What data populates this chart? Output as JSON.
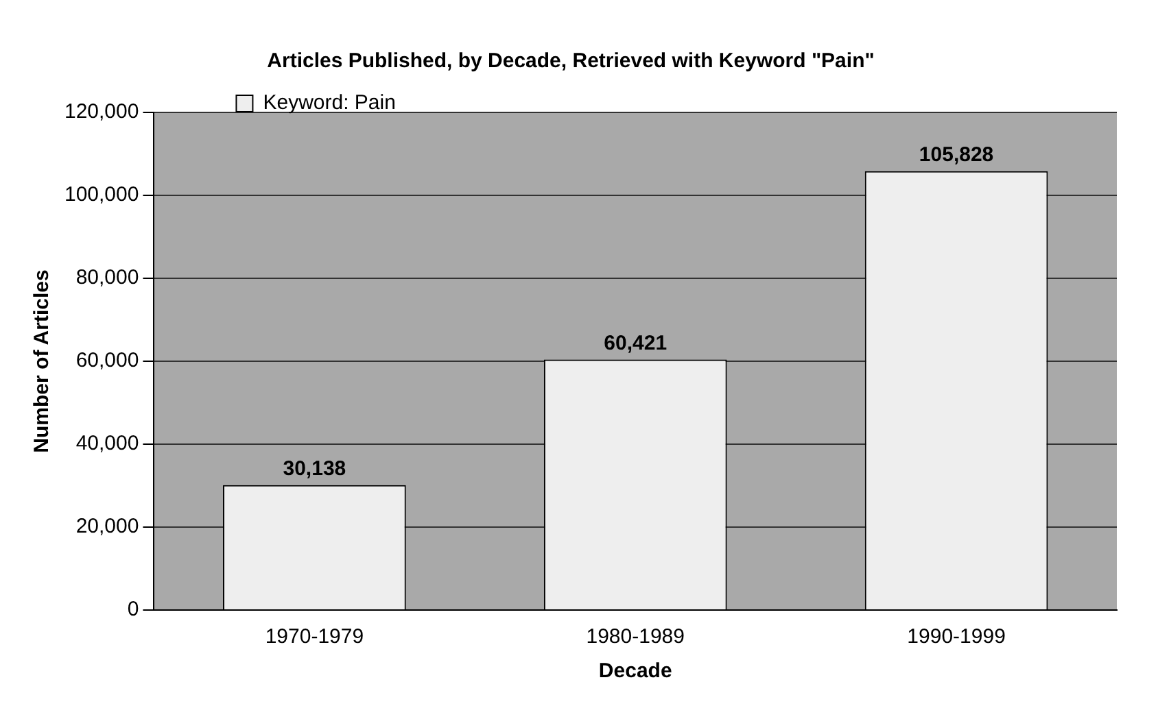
{
  "chart_data": {
    "type": "bar",
    "title": "Articles Published, by Decade, Retrieved with Keyword \"Pain\"",
    "xlabel": "Decade",
    "ylabel": "Number of Articles",
    "categories": [
      "1970-1979",
      "1980-1989",
      "1990-1999"
    ],
    "series": [
      {
        "name": "Keyword: Pain",
        "color": "#eeeeee",
        "values": [
          30138,
          60421,
          105828
        ],
        "value_labels": [
          "30,138",
          "60,421",
          "105,828"
        ]
      }
    ],
    "ylim": [
      0,
      120000
    ],
    "yticks": [
      0,
      {
        "value": 20000,
        "label": "20,000"
      },
      {
        "value": 40000,
        "label": "40,000"
      },
      {
        "value": 60000,
        "label": "60,000"
      },
      {
        "value": 80000,
        "label": "80,000"
      },
      {
        "value": 100000,
        "label": "100,000"
      },
      {
        "value": 120000,
        "label": "120,000"
      }
    ],
    "grid": "y",
    "legend": "top left"
  }
}
